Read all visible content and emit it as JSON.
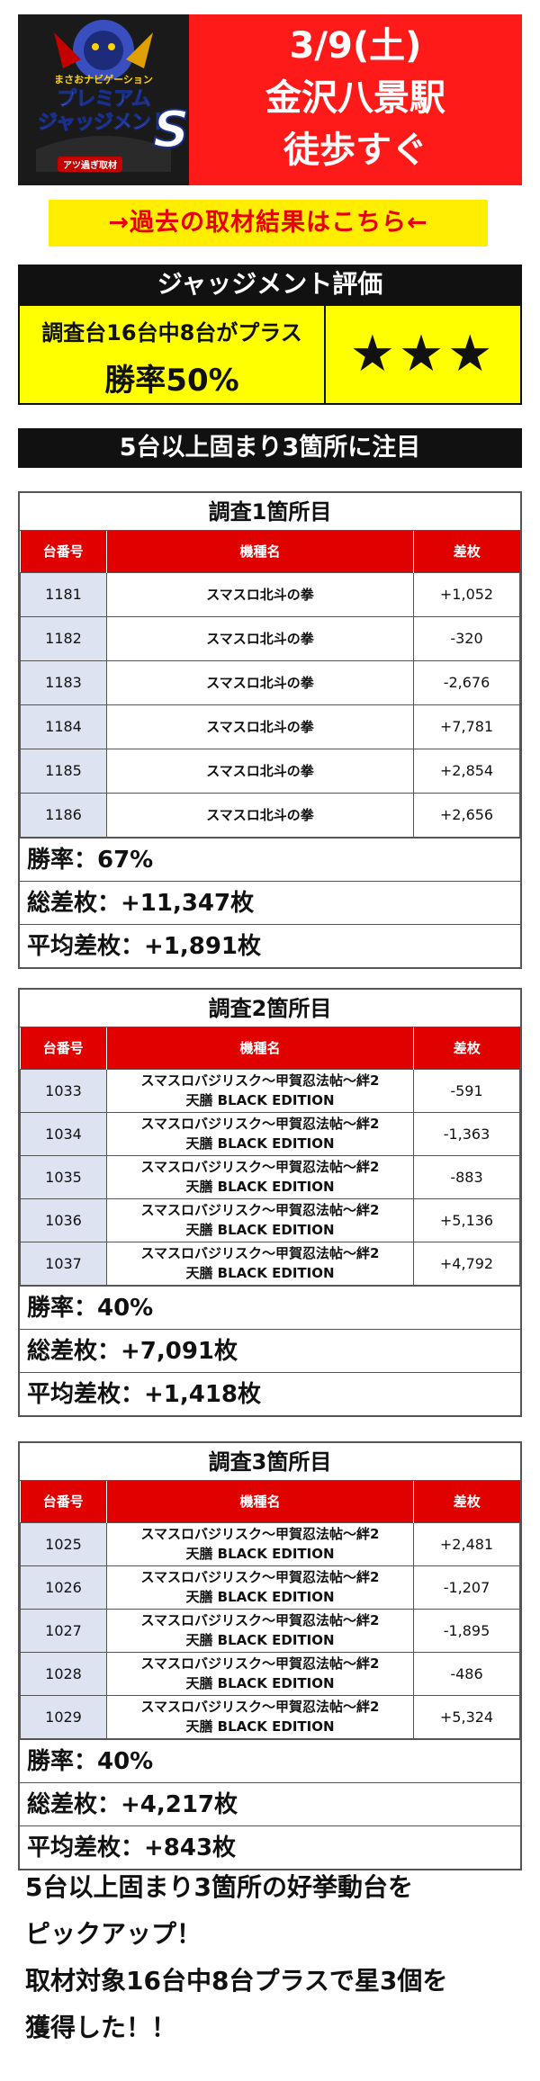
{
  "header": {
    "logo_sub": "まさおナビゲーション",
    "logo_main_1": "プレミアム",
    "logo_main_2": "ジャッジメント",
    "logo_s": "S",
    "logo_tag": "アツ過ぎ取材",
    "date": "3/9(土)",
    "station": "金沢八景駅",
    "walk": "徒歩すぐ"
  },
  "past_link": "→過去の取材結果はこちら←",
  "judgement": {
    "title": "ジャッジメント評価",
    "line1": "調査台16台中8台がプラス",
    "line2": "勝率50%",
    "stars": "★★★"
  },
  "focus": "5台以上固まり3箇所に注目",
  "columns": [
    "台番号",
    "機種名",
    "差枚"
  ],
  "survey1": {
    "title": "調査1箇所目",
    "rows": [
      {
        "no": "1181",
        "name": "スマスロ北斗の拳",
        "diff": "+1,052"
      },
      {
        "no": "1182",
        "name": "スマスロ北斗の拳",
        "diff": "-320"
      },
      {
        "no": "1183",
        "name": "スマスロ北斗の拳",
        "diff": "-2,676"
      },
      {
        "no": "1184",
        "name": "スマスロ北斗の拳",
        "diff": "+7,781"
      },
      {
        "no": "1185",
        "name": "スマスロ北斗の拳",
        "diff": "+2,854"
      },
      {
        "no": "1186",
        "name": "スマスロ北斗の拳",
        "diff": "+2,656"
      }
    ],
    "winrate": "勝率：67%",
    "total": "総差枚：+11,347枚",
    "avg": "平均差枚：+1,891枚"
  },
  "survey2": {
    "title": "調査2箇所目",
    "rows": [
      {
        "no": "1033",
        "name1": "スマスロバジリスク～甲賀忍法帖～絆2",
        "name2": "天膳 BLACK EDITION",
        "diff": "-591"
      },
      {
        "no": "1034",
        "name1": "スマスロバジリスク～甲賀忍法帖～絆2",
        "name2": "天膳 BLACK EDITION",
        "diff": "-1,363"
      },
      {
        "no": "1035",
        "name1": "スマスロバジリスク～甲賀忍法帖～絆2",
        "name2": "天膳 BLACK EDITION",
        "diff": "-883"
      },
      {
        "no": "1036",
        "name1": "スマスロバジリスク～甲賀忍法帖～絆2",
        "name2": "天膳 BLACK EDITION",
        "diff": "+5,136"
      },
      {
        "no": "1037",
        "name1": "スマスロバジリスク～甲賀忍法帖～絆2",
        "name2": "天膳 BLACK EDITION",
        "diff": "+4,792"
      }
    ],
    "winrate": "勝率：40%",
    "total": "総差枚：+7,091枚",
    "avg": "平均差枚：+1,418枚"
  },
  "survey3": {
    "title": "調査3箇所目",
    "rows": [
      {
        "no": "1025",
        "name1": "スマスロバジリスク～甲賀忍法帖～絆2",
        "name2": "天膳 BLACK EDITION",
        "diff": "+2,481"
      },
      {
        "no": "1026",
        "name1": "スマスロバジリスク～甲賀忍法帖～絆2",
        "name2": "天膳 BLACK EDITION",
        "diff": "-1,207"
      },
      {
        "no": "1027",
        "name1": "スマスロバジリスク～甲賀忍法帖～絆2",
        "name2": "天膳 BLACK EDITION",
        "diff": "-1,895"
      },
      {
        "no": "1028",
        "name1": "スマスロバジリスク～甲賀忍法帖～絆2",
        "name2": "天膳 BLACK EDITION",
        "diff": "-486"
      },
      {
        "no": "1029",
        "name1": "スマスロバジリスク～甲賀忍法帖～絆2",
        "name2": "天膳 BLACK EDITION",
        "diff": "+5,324"
      }
    ],
    "winrate": "勝率：40%",
    "total": "総差枚：+4,217枚",
    "avg": "平均差枚：+843枚"
  },
  "bottom": {
    "line1": "5台以上固まり3箇所の好挙動台を",
    "line2": "ピックアップ！",
    "line3": "取材対象16台中8台プラスで星3個を",
    "line4": "獲得した！！"
  },
  "colors": {
    "header_red": "#ff1a1a",
    "table_red": "#e10000",
    "highlight_yellow": "#ffff00",
    "link_red": "#e60000",
    "number_cell": "#dde3f1"
  }
}
